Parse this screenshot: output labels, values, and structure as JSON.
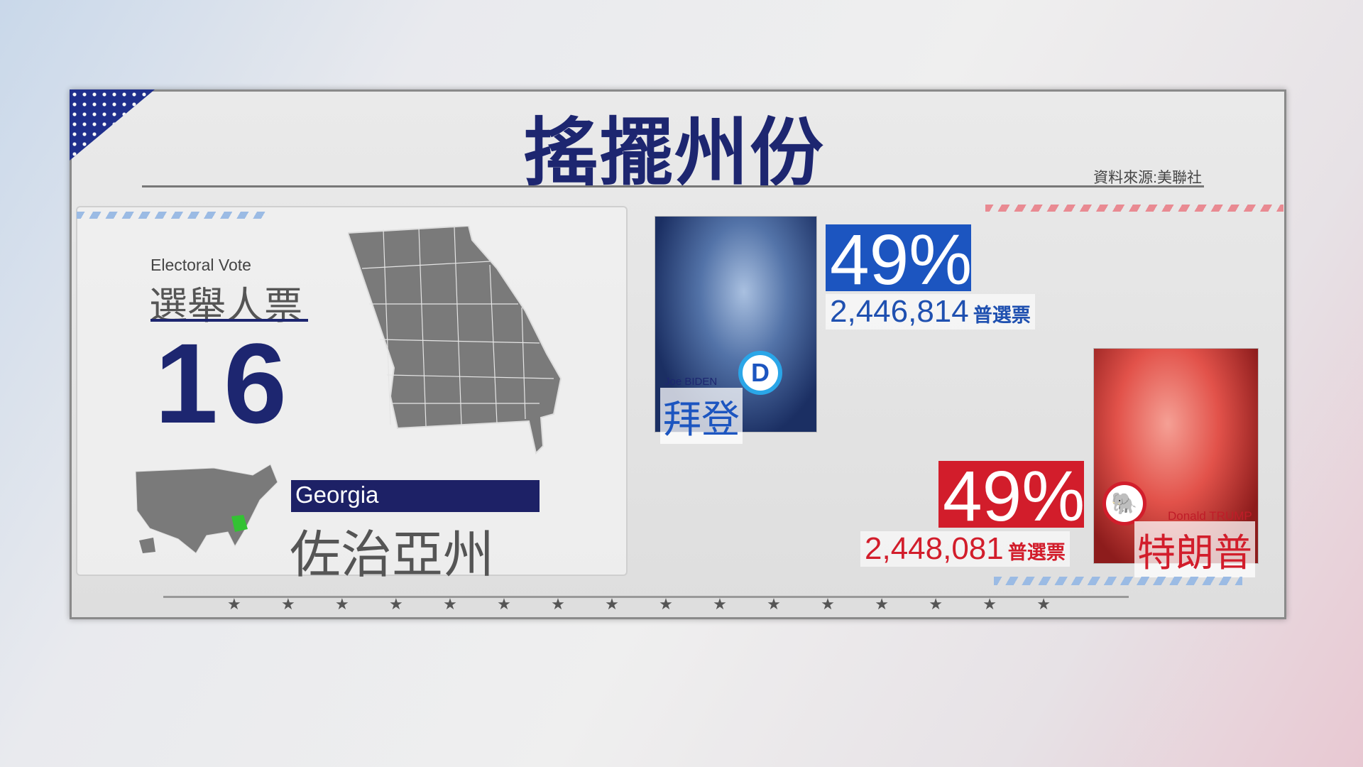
{
  "title": "搖擺州份",
  "source": "資料來源:美聯社",
  "electoral_vote": {
    "label_en": "Electoral Vote",
    "label_zh": "選舉人票",
    "count": "16"
  },
  "state": {
    "name_en": "Georgia",
    "name_zh": "佐治亞州",
    "highlight_color": "#33c233"
  },
  "candidates": [
    {
      "name_en": "Joe BIDEN",
      "name_zh": "拜登",
      "percent": "49%",
      "votes": "2,446,814",
      "votes_label": "普選票",
      "party_logo": "D",
      "color": "#1c55c0"
    },
    {
      "name_en": "Donald TRUMP",
      "name_zh": "特朗普",
      "percent": "49%",
      "votes": "2,448,081",
      "votes_label": "普選票",
      "party_logo": "elephant-icon",
      "color": "#d21d2b"
    }
  ],
  "stars": [
    "★",
    "★",
    "★",
    "★",
    "★",
    "★",
    "★",
    "★",
    "★",
    "★",
    "★",
    "★",
    "★",
    "★",
    "★",
    "★"
  ]
}
